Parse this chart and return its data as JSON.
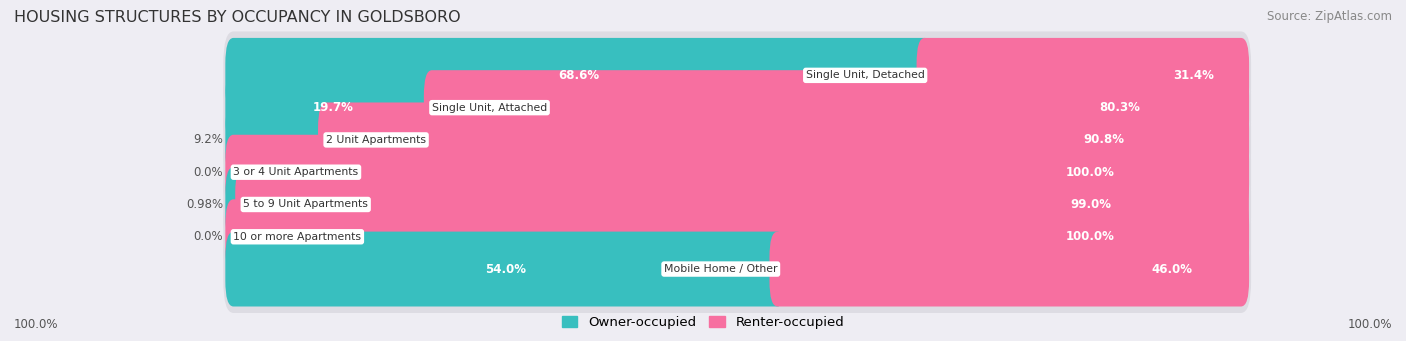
{
  "title": "HOUSING STRUCTURES BY OCCUPANCY IN GOLDSBORO",
  "source": "Source: ZipAtlas.com",
  "categories": [
    "Single Unit, Detached",
    "Single Unit, Attached",
    "2 Unit Apartments",
    "3 or 4 Unit Apartments",
    "5 to 9 Unit Apartments",
    "10 or more Apartments",
    "Mobile Home / Other"
  ],
  "owner_pct": [
    68.6,
    19.7,
    9.2,
    0.0,
    0.98,
    0.0,
    54.0
  ],
  "renter_pct": [
    31.4,
    80.3,
    90.8,
    100.0,
    99.0,
    100.0,
    46.0
  ],
  "owner_labels": [
    "68.6%",
    "19.7%",
    "9.2%",
    "0.0%",
    "0.98%",
    "0.0%",
    "54.0%"
  ],
  "renter_labels": [
    "31.4%",
    "80.3%",
    "90.8%",
    "100.0%",
    "99.0%",
    "100.0%",
    "46.0%"
  ],
  "owner_color": "#38bfbf",
  "renter_color": "#f76fa0",
  "bg_color": "#eeedf3",
  "bar_bg_color": "#dddce3",
  "title_color": "#333333",
  "source_color": "#888888",
  "label_dark": "#555555",
  "label_white": "#ffffff",
  "axis_label_left": "100.0%",
  "axis_label_right": "100.0%",
  "legend_owner": "Owner-occupied",
  "legend_renter": "Renter-occupied"
}
